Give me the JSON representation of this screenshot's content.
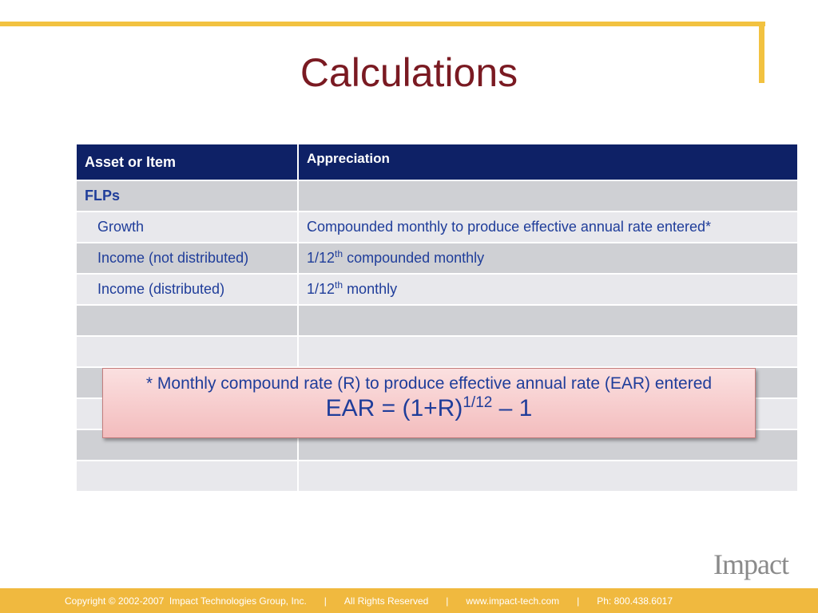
{
  "slide": {
    "title": "Calculations"
  },
  "table": {
    "headers": [
      "Asset or Item",
      "Appreciation"
    ],
    "rows": [
      {
        "item": "FLPs",
        "value": ""
      },
      {
        "item": "Growth",
        "value": "Compounded monthly to produce effective annual rate entered*"
      },
      {
        "item": "Income (not distributed)",
        "value_prefix": "1/12",
        "value_sup": "th",
        "value_suffix": " compounded monthly"
      },
      {
        "item": "Income (distributed)",
        "value_prefix": "1/12",
        "value_sup": "th",
        "value_suffix": " monthly"
      },
      {
        "item": "",
        "value": ""
      },
      {
        "item": "",
        "value": ""
      },
      {
        "item": "",
        "value": ""
      },
      {
        "item": "",
        "value": ""
      },
      {
        "item": "",
        "value": ""
      },
      {
        "item": "",
        "value": ""
      }
    ]
  },
  "callout": {
    "note": "* Monthly compound rate (R) to produce effective annual rate (EAR) entered",
    "formula_base": "EAR = (1+R)",
    "formula_exp": "1/12",
    "formula_tail": " – 1"
  },
  "logo": {
    "text": "Impact"
  },
  "footer": {
    "copyright": "Copyright © 2002-2007  Impact Technologies Group, Inc.",
    "separator": "|",
    "rights": "All Rights Reserved",
    "website": "www.impact-tech.com",
    "phone": "Ph: 800.438.6017"
  },
  "colors": {
    "accent_gold": "#f2c240",
    "title_maroon": "#7a1a22",
    "header_navy": "#0e2166",
    "text_blue": "#1f3d9a"
  }
}
